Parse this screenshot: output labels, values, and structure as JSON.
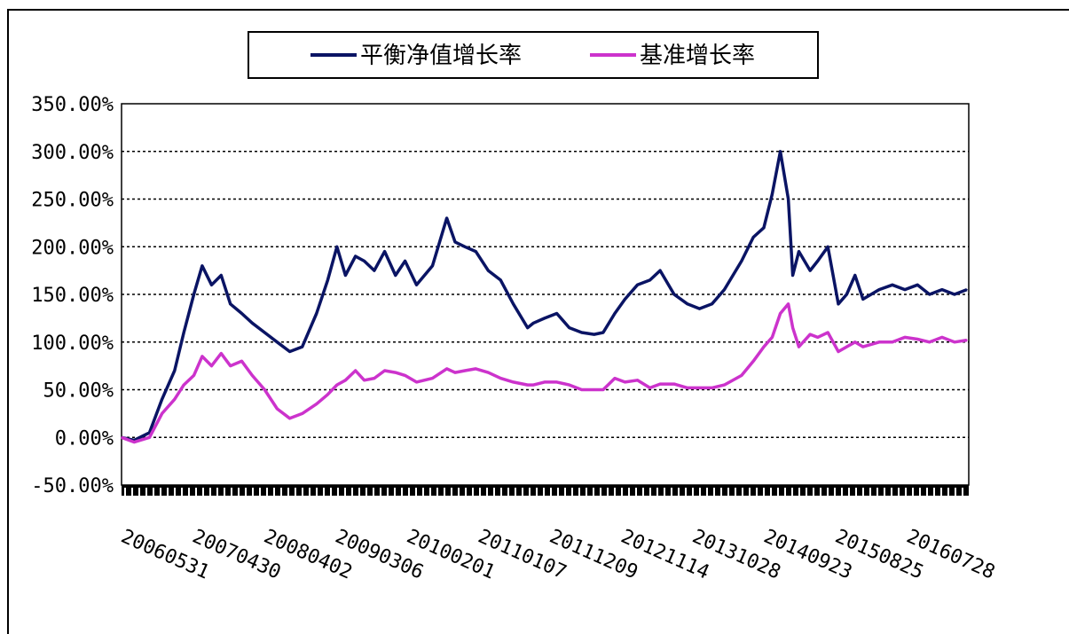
{
  "chart_data": {
    "type": "line",
    "title": "",
    "xlabel": "",
    "ylabel": "",
    "ylim": [
      -50,
      350
    ],
    "y_ticks": [
      "350.00%",
      "300.00%",
      "250.00%",
      "200.00%",
      "150.00%",
      "100.00%",
      "50.00%",
      "0.00%",
      "-50.00%"
    ],
    "y_tick_values": [
      350,
      300,
      250,
      200,
      150,
      100,
      50,
      0,
      -50
    ],
    "x_ticks": [
      "20060531",
      "20070430",
      "20080402",
      "20090306",
      "20100201",
      "20110107",
      "20111209",
      "20121114",
      "20131028",
      "20140923",
      "20150825",
      "20160728"
    ],
    "grid": "horizontal dashed",
    "legend_position": "top-center",
    "series": [
      {
        "name": "平衡净值增长率",
        "color": "#0a1464",
        "points": [
          [
            "2006-05-31",
            0
          ],
          [
            "2006-08-01",
            -3
          ],
          [
            "2006-10-15",
            5
          ],
          [
            "2006-12-15",
            40
          ],
          [
            "2007-02-15",
            70
          ],
          [
            "2007-04-01",
            110
          ],
          [
            "2007-05-20",
            150
          ],
          [
            "2007-06-30",
            180
          ],
          [
            "2007-08-15",
            160
          ],
          [
            "2007-10-01",
            170
          ],
          [
            "2007-11-15",
            140
          ],
          [
            "2008-01-10",
            130
          ],
          [
            "2008-03-01",
            120
          ],
          [
            "2008-05-01",
            110
          ],
          [
            "2008-07-01",
            100
          ],
          [
            "2008-09-01",
            90
          ],
          [
            "2008-11-01",
            95
          ],
          [
            "2009-01-10",
            130
          ],
          [
            "2009-03-06",
            165
          ],
          [
            "2009-04-20",
            200
          ],
          [
            "2009-06-01",
            170
          ],
          [
            "2009-07-20",
            190
          ],
          [
            "2009-09-01",
            185
          ],
          [
            "2009-10-20",
            175
          ],
          [
            "2009-12-10",
            195
          ],
          [
            "2010-02-01",
            170
          ],
          [
            "2010-03-20",
            185
          ],
          [
            "2010-05-15",
            160
          ],
          [
            "2010-08-01",
            180
          ],
          [
            "2010-10-10",
            230
          ],
          [
            "2010-11-20",
            205
          ],
          [
            "2011-01-07",
            200
          ],
          [
            "2011-03-01",
            195
          ],
          [
            "2011-05-01",
            175
          ],
          [
            "2011-07-01",
            165
          ],
          [
            "2011-09-01",
            140
          ],
          [
            "2011-11-10",
            115
          ],
          [
            "2011-12-09",
            120
          ],
          [
            "2012-02-01",
            125
          ],
          [
            "2012-04-01",
            130
          ],
          [
            "2012-06-01",
            115
          ],
          [
            "2012-08-01",
            110
          ],
          [
            "2012-10-01",
            108
          ],
          [
            "2012-11-14",
            110
          ],
          [
            "2013-01-10",
            130
          ],
          [
            "2013-03-01",
            145
          ],
          [
            "2013-05-01",
            160
          ],
          [
            "2013-07-01",
            165
          ],
          [
            "2013-08-20",
            175
          ],
          [
            "2013-10-28",
            150
          ],
          [
            "2014-01-01",
            140
          ],
          [
            "2014-03-01",
            135
          ],
          [
            "2014-05-01",
            140
          ],
          [
            "2014-07-01",
            155
          ],
          [
            "2014-09-23",
            185
          ],
          [
            "2014-11-20",
            210
          ],
          [
            "2015-01-10",
            220
          ],
          [
            "2015-02-20",
            255
          ],
          [
            "2015-04-01",
            300
          ],
          [
            "2015-05-10",
            250
          ],
          [
            "2015-06-01",
            170
          ],
          [
            "2015-07-01",
            195
          ],
          [
            "2015-08-25",
            175
          ],
          [
            "2015-10-01",
            185
          ],
          [
            "2015-11-20",
            200
          ],
          [
            "2016-01-10",
            140
          ],
          [
            "2016-02-20",
            150
          ],
          [
            "2016-04-01",
            170
          ],
          [
            "2016-05-10",
            145
          ],
          [
            "2016-07-28",
            155
          ],
          [
            "2016-10-01",
            160
          ],
          [
            "2016-12-01",
            155
          ],
          [
            "2017-02-01",
            160
          ],
          [
            "2017-04-01",
            150
          ],
          [
            "2017-06-01",
            155
          ],
          [
            "2017-08-01",
            150
          ],
          [
            "2017-10-01",
            155
          ]
        ]
      },
      {
        "name": "基准增长率",
        "color": "#cc33cc",
        "points": [
          [
            "2006-05-31",
            0
          ],
          [
            "2006-08-01",
            -5
          ],
          [
            "2006-10-15",
            0
          ],
          [
            "2006-12-15",
            25
          ],
          [
            "2007-02-15",
            40
          ],
          [
            "2007-04-01",
            55
          ],
          [
            "2007-05-20",
            65
          ],
          [
            "2007-06-30",
            85
          ],
          [
            "2007-08-15",
            75
          ],
          [
            "2007-10-01",
            88
          ],
          [
            "2007-11-15",
            75
          ],
          [
            "2008-01-10",
            80
          ],
          [
            "2008-03-01",
            65
          ],
          [
            "2008-05-01",
            50
          ],
          [
            "2008-07-01",
            30
          ],
          [
            "2008-09-01",
            20
          ],
          [
            "2008-11-01",
            25
          ],
          [
            "2009-01-10",
            35
          ],
          [
            "2009-03-06",
            45
          ],
          [
            "2009-04-20",
            55
          ],
          [
            "2009-06-01",
            60
          ],
          [
            "2009-07-20",
            70
          ],
          [
            "2009-09-01",
            60
          ],
          [
            "2009-10-20",
            62
          ],
          [
            "2009-12-10",
            70
          ],
          [
            "2010-02-01",
            68
          ],
          [
            "2010-03-20",
            65
          ],
          [
            "2010-05-15",
            58
          ],
          [
            "2010-08-01",
            62
          ],
          [
            "2010-10-10",
            72
          ],
          [
            "2010-11-20",
            68
          ],
          [
            "2011-01-07",
            70
          ],
          [
            "2011-03-01",
            72
          ],
          [
            "2011-05-01",
            68
          ],
          [
            "2011-07-01",
            62
          ],
          [
            "2011-09-01",
            58
          ],
          [
            "2011-11-10",
            55
          ],
          [
            "2011-12-09",
            55
          ],
          [
            "2012-02-01",
            58
          ],
          [
            "2012-04-01",
            58
          ],
          [
            "2012-06-01",
            55
          ],
          [
            "2012-08-01",
            50
          ],
          [
            "2012-10-01",
            50
          ],
          [
            "2012-11-14",
            50
          ],
          [
            "2013-01-10",
            62
          ],
          [
            "2013-03-01",
            58
          ],
          [
            "2013-05-01",
            60
          ],
          [
            "2013-07-01",
            52
          ],
          [
            "2013-08-20",
            56
          ],
          [
            "2013-10-28",
            56
          ],
          [
            "2014-01-01",
            52
          ],
          [
            "2014-03-01",
            52
          ],
          [
            "2014-05-01",
            52
          ],
          [
            "2014-07-01",
            55
          ],
          [
            "2014-09-23",
            65
          ],
          [
            "2014-11-20",
            80
          ],
          [
            "2015-01-10",
            95
          ],
          [
            "2015-02-20",
            105
          ],
          [
            "2015-04-01",
            130
          ],
          [
            "2015-05-10",
            140
          ],
          [
            "2015-06-01",
            115
          ],
          [
            "2015-07-01",
            95
          ],
          [
            "2015-08-25",
            108
          ],
          [
            "2015-10-01",
            105
          ],
          [
            "2015-11-20",
            110
          ],
          [
            "2016-01-10",
            90
          ],
          [
            "2016-02-20",
            95
          ],
          [
            "2016-04-01",
            100
          ],
          [
            "2016-05-10",
            95
          ],
          [
            "2016-07-28",
            100
          ],
          [
            "2016-10-01",
            100
          ],
          [
            "2016-12-01",
            105
          ],
          [
            "2017-02-01",
            103
          ],
          [
            "2017-04-01",
            100
          ],
          [
            "2017-06-01",
            105
          ],
          [
            "2017-08-01",
            100
          ],
          [
            "2017-10-01",
            102
          ]
        ]
      }
    ]
  }
}
